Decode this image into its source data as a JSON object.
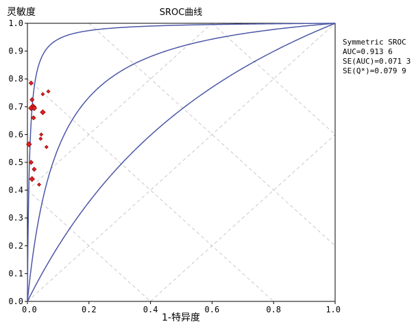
{
  "chart_data": {
    "type": "scatter",
    "title": "SROC曲线",
    "ylabel": "灵敏度",
    "xlabel": "1-特异度",
    "xlim": [
      0,
      1
    ],
    "ylim": [
      0,
      1
    ],
    "x_ticks": [
      "0.0",
      "0.2",
      "0.4",
      "0.6",
      "0.8",
      "1.0"
    ],
    "y_ticks": [
      "0.0",
      "0.1",
      "0.2",
      "0.3",
      "0.4",
      "0.5",
      "0.6",
      "0.7",
      "0.8",
      "0.9",
      "1.0"
    ],
    "grid": "dashed-diagonals",
    "stats": {
      "heading": "Symmetric SROC",
      "auc": "AUC=0.913 6",
      "se_auc": "SE(AUC)=0.071 3",
      "se_q": "SE(Q*)=0.079 9"
    },
    "curves": [
      {
        "name": "SROC",
        "theta": 2.4
      },
      {
        "name": "upper",
        "theta": 5.0
      },
      {
        "name": "lower",
        "theta": 0.8
      }
    ],
    "points": [
      {
        "x": 0.012,
        "y": 0.785,
        "size": 1.0
      },
      {
        "x": 0.015,
        "y": 0.725,
        "size": 1.0
      },
      {
        "x": 0.018,
        "y": 0.7,
        "size": 1.4
      },
      {
        "x": 0.012,
        "y": 0.695,
        "size": 1.2
      },
      {
        "x": 0.022,
        "y": 0.695,
        "size": 1.2
      },
      {
        "x": 0.02,
        "y": 0.66,
        "size": 1.0
      },
      {
        "x": 0.05,
        "y": 0.745,
        "size": 0.8
      },
      {
        "x": 0.068,
        "y": 0.755,
        "size": 0.8
      },
      {
        "x": 0.05,
        "y": 0.68,
        "size": 1.2
      },
      {
        "x": 0.045,
        "y": 0.6,
        "size": 0.8
      },
      {
        "x": 0.043,
        "y": 0.585,
        "size": 0.8
      },
      {
        "x": 0.005,
        "y": 0.565,
        "size": 1.2
      },
      {
        "x": 0.062,
        "y": 0.555,
        "size": 0.8
      },
      {
        "x": 0.012,
        "y": 0.5,
        "size": 1.0
      },
      {
        "x": 0.022,
        "y": 0.475,
        "size": 1.0
      },
      {
        "x": 0.015,
        "y": 0.44,
        "size": 1.2
      },
      {
        "x": 0.038,
        "y": 0.42,
        "size": 0.8
      }
    ]
  }
}
